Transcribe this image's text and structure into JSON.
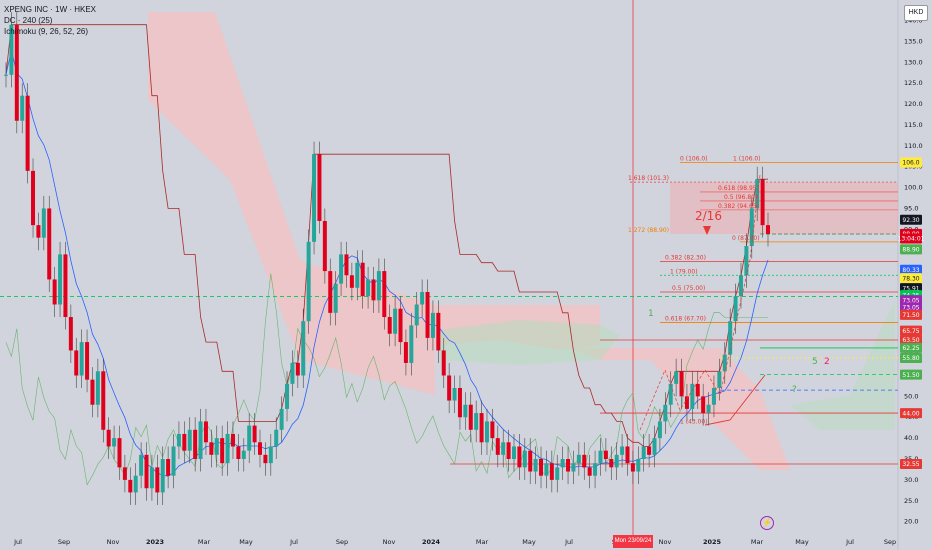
{
  "legend": {
    "symbol": "XPENG INC · 1W · HKEX",
    "dc": "DC · 240 (25)",
    "ichimoku": "Ichimoku (9, 26, 52, 26)"
  },
  "currency": "HKD",
  "crosshair_date": "Mon 23/09/24",
  "colors": {
    "background": "#d1d4dc",
    "up": "#26a69a",
    "down": "#e0001b",
    "kumo": "#f4c2c2",
    "kumo_green": "#b7dcc0",
    "fib": "#f57c00",
    "resistance": "#e53935",
    "support_green": "#2e7d32",
    "crosshair": "#f23645"
  },
  "x_axis": {
    "ticks": [
      "Jul",
      "Sep",
      "Nov",
      "2023",
      "Mar",
      "May",
      "Jul",
      "Sep",
      "Nov",
      "2024",
      "Mar",
      "May",
      "Jul",
      "Sep",
      "Nov",
      "2025",
      "Mar",
      "May",
      "Jul",
      "Sep"
    ]
  },
  "y_axis": {
    "ticks": [
      140.0,
      135.0,
      130.0,
      125.0,
      120.0,
      115.0,
      110.0,
      105.0,
      100.0,
      95.0,
      90.0,
      85.0,
      80.0,
      75.0,
      70.0,
      65.0,
      60.0,
      55.0,
      50.0,
      45.0,
      40.0,
      35.0,
      30.0,
      25.0,
      20.0
    ],
    "ticks_text": [
      "140.0",
      "135.0",
      "130.0",
      "125.0",
      "120.0",
      "115.0",
      "110.0",
      "105.0",
      "100.0",
      "95.0",
      "90.0",
      "85.0",
      "80.0",
      "75.0",
      "70.0",
      "65.0",
      "60.0",
      "55.0",
      "50.0",
      "45.0",
      "40.0",
      "35.0",
      "30.0",
      "25.0",
      "20.0"
    ]
  },
  "price_tags": [
    {
      "label": "106.0",
      "value": 106.0,
      "bg": "#ffeb3b",
      "fg": "#131722"
    },
    {
      "label": "92.30",
      "value": 92.3,
      "bg": "#131722",
      "fg": "#ffffff"
    },
    {
      "label": "88.90",
      "value": 88.9,
      "bg": "#e0001b",
      "fg": "#ffffff"
    },
    {
      "label": "13:04:01",
      "value": 87.8,
      "bg": "#e0001b",
      "fg": "#ffffff"
    },
    {
      "label": "88.90",
      "value": 85.2,
      "bg": "#4caf50",
      "fg": "#ffffff"
    },
    {
      "label": "80.33",
      "value": 80.33,
      "bg": "#2962ff",
      "fg": "#ffffff"
    },
    {
      "label": "78.30",
      "value": 78.3,
      "bg": "#ffeb3b",
      "fg": "#131722"
    },
    {
      "label": "75.91",
      "value": 75.91,
      "bg": "#131722",
      "fg": "#ffffff"
    },
    {
      "label": "74.25",
      "value": 74.25,
      "bg": "#00c853",
      "fg": "#ffffff"
    },
    {
      "label": "73.05",
      "value": 73.05,
      "bg": "#9c27b0",
      "fg": "#ffffff"
    },
    {
      "label": "73.05",
      "value": 71.3,
      "bg": "#9c27b0",
      "fg": "#ffffff"
    },
    {
      "label": "71.50",
      "value": 69.5,
      "bg": "#e53935",
      "fg": "#ffffff"
    },
    {
      "label": "65.75",
      "value": 65.75,
      "bg": "#e53935",
      "fg": "#ffffff"
    },
    {
      "label": "63.50",
      "value": 63.5,
      "bg": "#e53935",
      "fg": "#ffffff"
    },
    {
      "label": "62.25",
      "value": 61.6,
      "bg": "#4caf50",
      "fg": "#ffffff"
    },
    {
      "label": "55.80",
      "value": 59.2,
      "bg": "#4caf50",
      "fg": "#ffffff"
    },
    {
      "label": "51.50",
      "value": 55.2,
      "bg": "#4caf50",
      "fg": "#ffffff"
    },
    {
      "label": "44.00",
      "value": 46.0,
      "bg": "#e53935",
      "fg": "#ffffff"
    },
    {
      "label": "32.55",
      "value": 33.8,
      "bg": "#e53935",
      "fg": "#ffffff"
    }
  ],
  "fib_labels": [
    {
      "text": "0 (106.0)",
      "value": 106.0
    },
    {
      "text": "1 (106.0)",
      "value": 106.0
    },
    {
      "text": "1.618 (101.3)",
      "value": 101.3
    },
    {
      "text": "0.618 (98.95)",
      "value": 98.95
    },
    {
      "text": "0.5 (96.80)",
      "value": 96.8
    },
    {
      "text": "0.382 (94.65)",
      "value": 94.65
    },
    {
      "text": "1.272 (88.90)",
      "value": 88.9
    },
    {
      "text": "0 (87.00)",
      "value": 87.0
    },
    {
      "text": "0.382 (82.30)",
      "value": 82.3
    },
    {
      "text": "1 (79.00)",
      "value": 79.0
    },
    {
      "text": "0.5 (75.00)",
      "value": 75.0
    },
    {
      "text": "0.618 (67.70)",
      "value": 67.7
    },
    {
      "text": "1 (43.00)",
      "value": 43.0
    }
  ],
  "annotations": {
    "date_note": "2/16",
    "wave_1": "1",
    "wave_5": "5",
    "wave_2": "2",
    "wave_q": "?"
  },
  "chart_data": {
    "type": "candlestick",
    "title": "XPENG INC · 1W · HKEX",
    "ylabel": "",
    "ylim": [
      18,
      143
    ],
    "indicators": [
      "DC · 240 (25)",
      "Ichimoku (9, 26, 52, 26)"
    ],
    "weekly_close_path": [
      127,
      139,
      116,
      122,
      104,
      91,
      88,
      95,
      78,
      72,
      84,
      69,
      61,
      55,
      63,
      54,
      48,
      56,
      42,
      38,
      40,
      33,
      30,
      27,
      31,
      36,
      28,
      33,
      27,
      35,
      31,
      38,
      41,
      37,
      42,
      35,
      44,
      39,
      36,
      40,
      34,
      41,
      38,
      35,
      37,
      43,
      39,
      36,
      34,
      38,
      42,
      47,
      53,
      58,
      55,
      68,
      87,
      108,
      92,
      80,
      70,
      77,
      84,
      79,
      76,
      82,
      74,
      78,
      73,
      80,
      69,
      65,
      71,
      63,
      58,
      67,
      72,
      75,
      64,
      70,
      61,
      55,
      49,
      52,
      45,
      48,
      42,
      46,
      39,
      44,
      40,
      36,
      39,
      35,
      38,
      33,
      37,
      32,
      35,
      31,
      34,
      30,
      33,
      35,
      32,
      34,
      36,
      33,
      31,
      34,
      37,
      35,
      33,
      36,
      38,
      34,
      32,
      35,
      38,
      36,
      40,
      44,
      48,
      53,
      56,
      50,
      47,
      53,
      50,
      46,
      48,
      52,
      56,
      60,
      68,
      74,
      79,
      86,
      95,
      102,
      91,
      88.9
    ]
  }
}
